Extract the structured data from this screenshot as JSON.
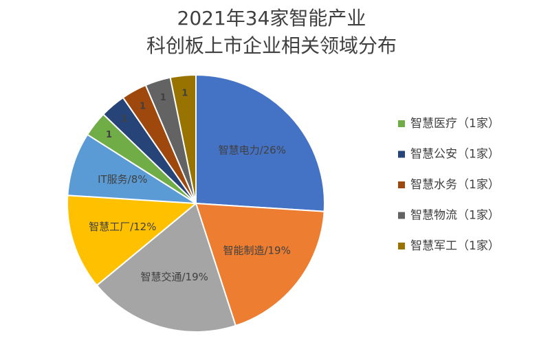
{
  "chart_data": {
    "type": "pie",
    "title": [
      "2021年34家智能产业",
      "科创板上市企业相关领域分布"
    ],
    "slices": [
      {
        "label": "智慧电力/26%",
        "value": 26,
        "color": "#4472c4"
      },
      {
        "label": "智能制造/19%",
        "value": 19,
        "color": "#ed7d31"
      },
      {
        "label": "智慧交通/19%",
        "value": 19,
        "color": "#a5a5a5"
      },
      {
        "label": "智慧工厂/12%",
        "value": 12,
        "color": "#ffc000"
      },
      {
        "label": "IT服务/8%",
        "value": 8,
        "color": "#5b9bd5"
      },
      {
        "label": "1",
        "legend": "智慧医疗（1家）",
        "value": 3.2,
        "color": "#70ad47"
      },
      {
        "label": "1",
        "legend": "智慧公安（1家）",
        "value": 3.2,
        "color": "#264478"
      },
      {
        "label": "1",
        "legend": "智慧水务（1家）",
        "value": 3.2,
        "color": "#9e480e"
      },
      {
        "label": "1",
        "legend": "智慧物流（1家）",
        "value": 3.2,
        "color": "#636363"
      },
      {
        "label": "1",
        "legend": "智慧军工（1家）",
        "value": 3.2,
        "color": "#997300"
      }
    ]
  }
}
